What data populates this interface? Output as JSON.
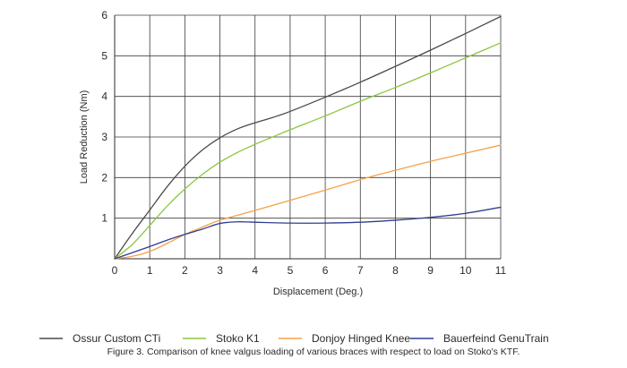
{
  "chart_data": {
    "type": "line",
    "title": "",
    "xlabel": "Displacement (Deg.)",
    "ylabel": "Load Reduction (Nm)",
    "xlim": [
      0,
      11
    ],
    "ylim": [
      0,
      6
    ],
    "grid": true,
    "x_ticks": [
      0,
      1,
      2,
      3,
      4,
      5,
      6,
      7,
      8,
      9,
      10,
      11
    ],
    "y_ticks": [
      1,
      2,
      3,
      4,
      5,
      6
    ],
    "legend_position": "bottom",
    "series": [
      {
        "name": "Ossur Custom CTi",
        "color": "#4a4a4a",
        "x": [
          0,
          0.5,
          1,
          1.5,
          2,
          2.5,
          3,
          3.5,
          4,
          4.5,
          5,
          6,
          7,
          8,
          9,
          10,
          11
        ],
        "y": [
          0,
          0.62,
          1.2,
          1.78,
          2.28,
          2.68,
          2.98,
          3.2,
          3.35,
          3.48,
          3.63,
          3.98,
          4.35,
          4.74,
          5.14,
          5.55,
          5.97
        ]
      },
      {
        "name": "Stoko K1",
        "color": "#8cc63f",
        "x": [
          0,
          0.5,
          1,
          1.5,
          2,
          2.5,
          3,
          3.5,
          4,
          4.5,
          5,
          6,
          7,
          8,
          9,
          10,
          11
        ],
        "y": [
          0,
          0.35,
          0.82,
          1.3,
          1.72,
          2.08,
          2.38,
          2.62,
          2.82,
          3.0,
          3.18,
          3.52,
          3.88,
          4.22,
          4.58,
          4.95,
          5.32
        ]
      },
      {
        "name": "Donjoy Hinged Knee",
        "color": "#f5a04a",
        "x": [
          0,
          0.5,
          1,
          1.5,
          2,
          2.5,
          3,
          4,
          5,
          6,
          7,
          8,
          9,
          10,
          11
        ],
        "y": [
          0,
          0.06,
          0.18,
          0.38,
          0.6,
          0.78,
          0.95,
          1.19,
          1.44,
          1.69,
          1.95,
          2.18,
          2.4,
          2.6,
          2.8
        ]
      },
      {
        "name": "Bauerfeind GenuTrain",
        "color": "#2e3f8f",
        "x": [
          0,
          0.5,
          1,
          1.5,
          2,
          2.5,
          3,
          3.5,
          4,
          5,
          6,
          7,
          8,
          9,
          10,
          11
        ],
        "y": [
          0,
          0.15,
          0.3,
          0.46,
          0.6,
          0.73,
          0.87,
          0.91,
          0.9,
          0.88,
          0.88,
          0.9,
          0.95,
          1.02,
          1.12,
          1.27
        ]
      }
    ]
  },
  "caption": "Figure 3. Comparison of knee valgus loading of various braces with respect to load on Stoko's KTF."
}
